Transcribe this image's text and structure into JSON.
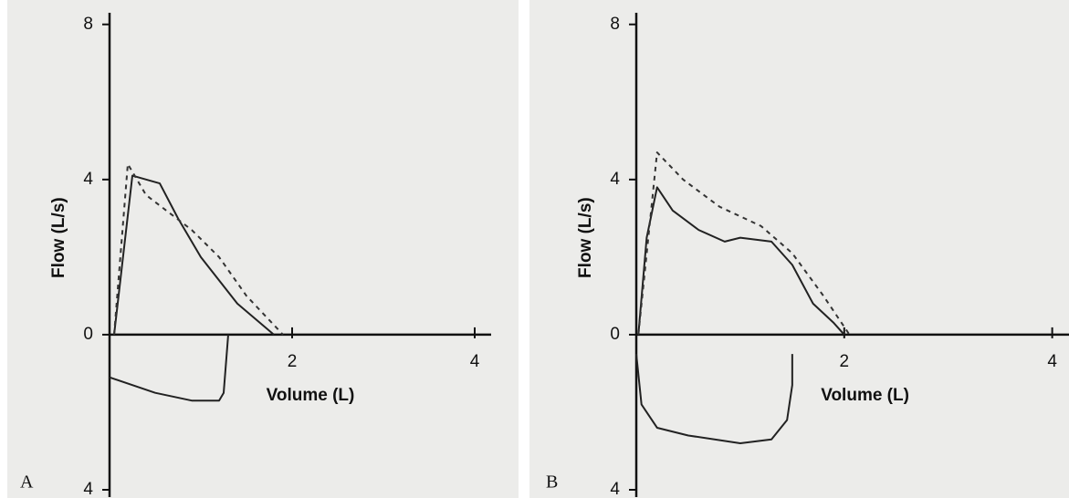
{
  "chart_data": [
    {
      "type": "line",
      "panel": "A",
      "ylabel": "Flow (L/s)",
      "xlabel": "Volume (L)",
      "xlim": [
        0,
        4.1
      ],
      "ylim": [
        -4,
        8.3
      ],
      "xticks": [
        2,
        4
      ],
      "yticks": [
        8,
        4,
        0,
        {
          "value": -4,
          "label": "4"
        }
      ],
      "series": [
        {
          "color": "#222",
          "dash": false,
          "x": [
            0.05,
            0.25,
            0.4,
            0.55,
            0.75,
            1.0,
            1.4,
            1.8
          ],
          "values": [
            0,
            4.1,
            4.0,
            3.9,
            3.0,
            2.0,
            0.8,
            0
          ]
        },
        {
          "color": "#333",
          "dash": true,
          "x": [
            0.05,
            0.2,
            0.4,
            0.9,
            1.2,
            1.5,
            1.9
          ],
          "values": [
            0,
            4.4,
            3.6,
            2.7,
            2.0,
            1.0,
            0
          ]
        },
        {
          "color": "#222",
          "dash": false,
          "x": [
            1.3,
            1.25,
            1.2,
            0.9,
            0.5,
            0
          ],
          "values": [
            0,
            -1.5,
            -1.7,
            -1.7,
            -1.5,
            -1.1
          ]
        }
      ]
    },
    {
      "type": "line",
      "panel": "B",
      "ylabel": "Flow (L/s)",
      "xlabel": "Volume (L)",
      "xlim": [
        0,
        4.1
      ],
      "ylim": [
        -4,
        8.3
      ],
      "xticks": [
        2,
        4
      ],
      "yticks": [
        8,
        4,
        0,
        {
          "value": -4,
          "label": "4"
        }
      ],
      "series": [
        {
          "color": "#222",
          "dash": false,
          "x": [
            0.02,
            0.1,
            0.2,
            0.35,
            0.6,
            0.85,
            1.0,
            1.3,
            1.5,
            1.7,
            1.9,
            2.0
          ],
          "values": [
            0,
            2.5,
            3.8,
            3.2,
            2.7,
            2.4,
            2.5,
            2.4,
            1.8,
            0.8,
            0.3,
            0
          ]
        },
        {
          "color": "#333",
          "dash": true,
          "x": [
            0.02,
            0.2,
            0.45,
            0.8,
            1.2,
            1.5,
            1.8,
            2.05
          ],
          "values": [
            0,
            4.7,
            4.0,
            3.3,
            2.8,
            2.1,
            1.0,
            0
          ]
        },
        {
          "color": "#222",
          "dash": false,
          "x": [
            0,
            0.05,
            0.2,
            0.5,
            1.0,
            1.3,
            1.45,
            1.5,
            1.5
          ],
          "values": [
            -0.5,
            -1.8,
            -2.4,
            -2.6,
            -2.8,
            -2.7,
            -2.2,
            -1.3,
            -0.5
          ]
        }
      ]
    }
  ]
}
